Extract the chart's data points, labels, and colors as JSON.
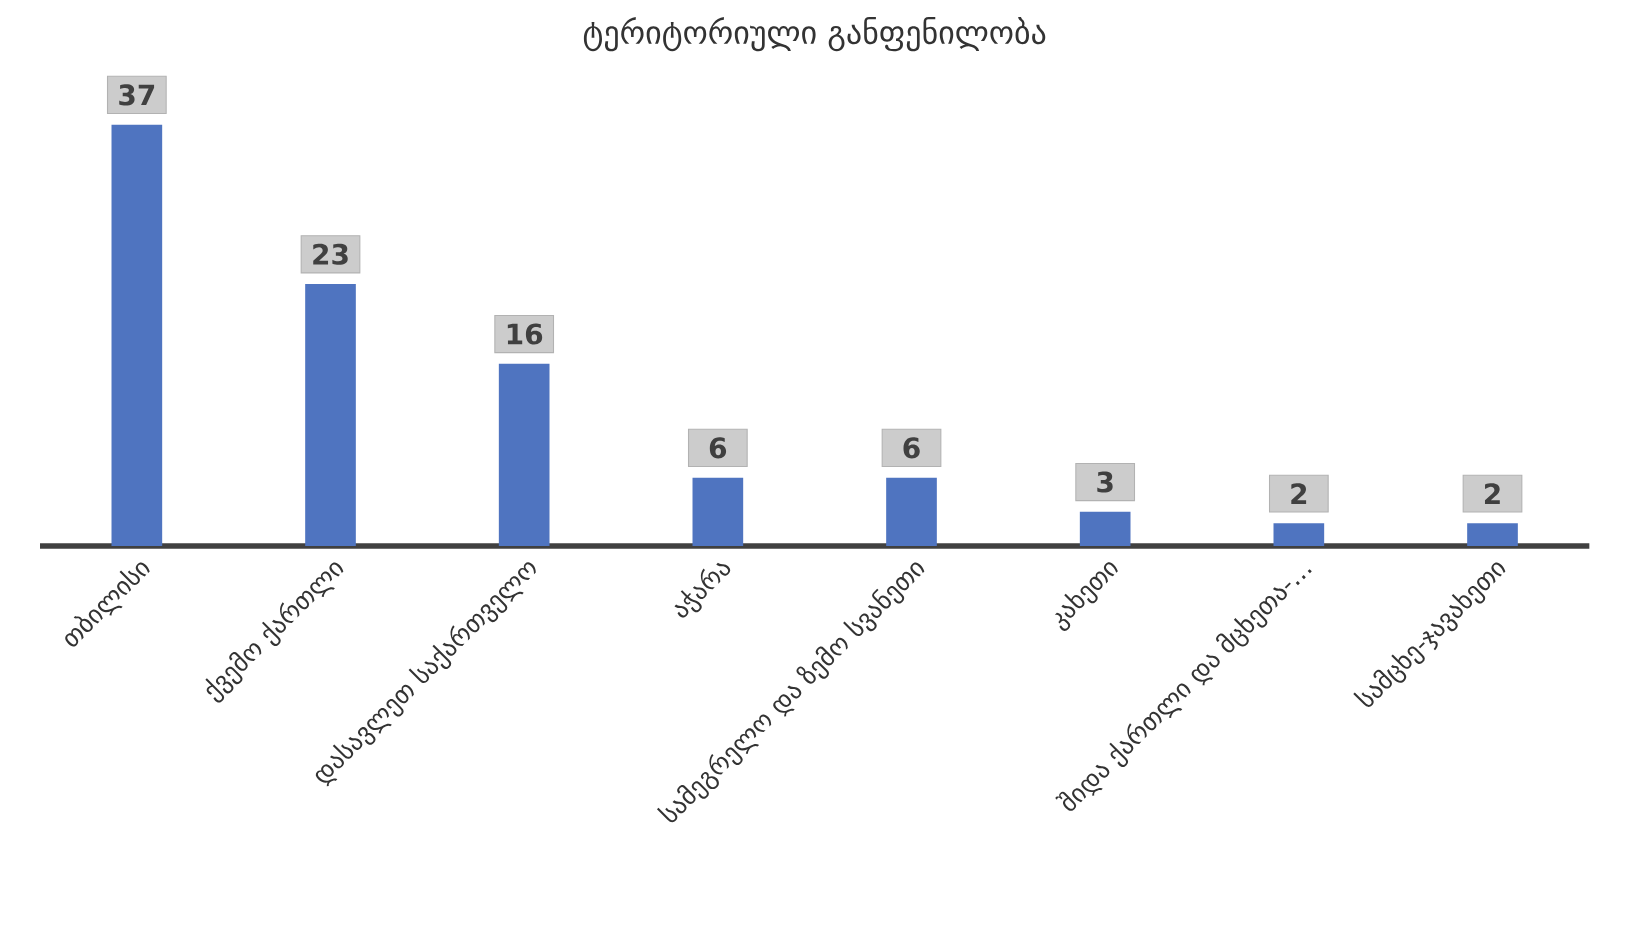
{
  "chart_data": {
    "type": "bar",
    "title": "ტერიტორიული განფენილობა",
    "categories": [
      "თბილისი",
      "ქვემო ქართლი",
      "დასავლეთ საქართველო",
      "აჭარა",
      "სამეგრელო და ზემო სვანეთი",
      "კახეთი",
      "შიდა ქართლი და მცხეთა-…",
      "სამცხე-ჯავახეთი"
    ],
    "values": [
      37,
      23,
      16,
      6,
      6,
      3,
      2,
      2
    ],
    "color": "#4f74c0",
    "tick_labels": "x",
    "data_labels": true
  }
}
